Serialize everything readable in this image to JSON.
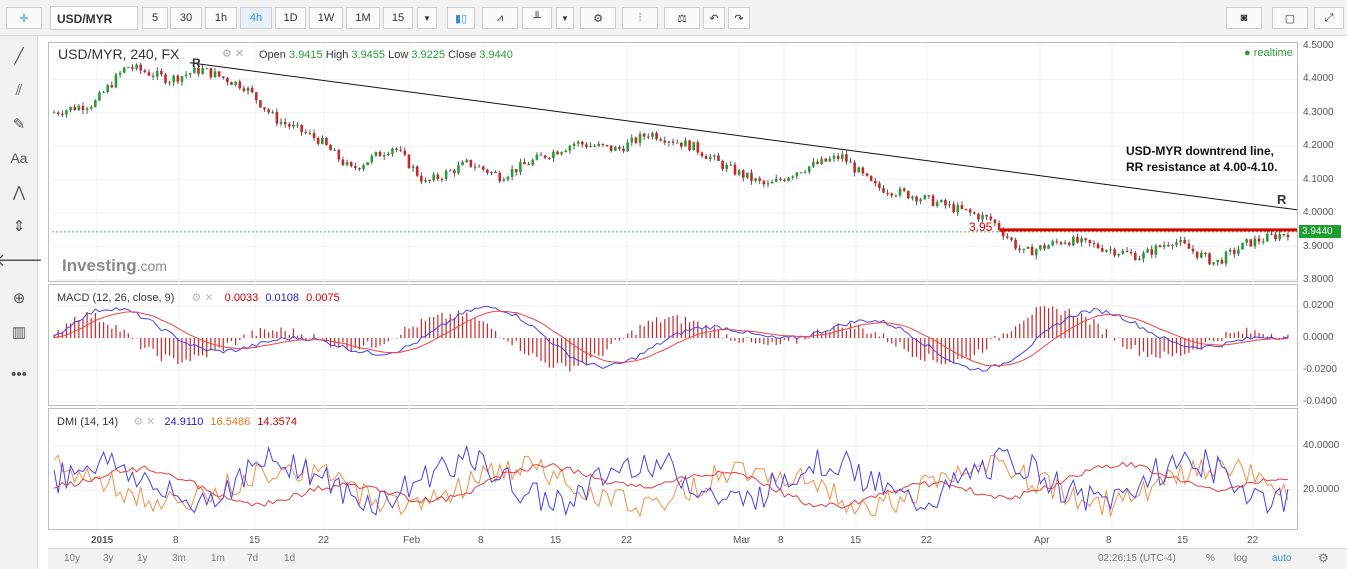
{
  "toolbar": {
    "symbol": "USD/MYR",
    "intervals": [
      "5",
      "30",
      "1h",
      "4h",
      "1D",
      "1W",
      "1M",
      "15"
    ],
    "active_interval": "4h"
  },
  "legend": {
    "title": "USD/MYR, 240, FX",
    "open_label": "Open",
    "open": "3.9415",
    "high_label": "High",
    "high": "3.9455",
    "low_label": "Low",
    "low": "3.9225",
    "close_label": "Close",
    "close": "3.9440",
    "realtime": "realtime"
  },
  "annotations": {
    "r_left": "R",
    "r_right": "R",
    "level_label": "3.95",
    "note_line1": "USD-MYR downtrend line,",
    "note_line2": "RR resistance at 4.00-4.10.",
    "watermark_brand": "Investing",
    "watermark_suffix": ".com",
    "price_tag": "3.9440"
  },
  "macd": {
    "label": "MACD (12, 26, close, 9)",
    "v1": "0.0033",
    "v2": "0.0108",
    "v3": "0.0075",
    "ticks": [
      "0.0200",
      "0.0000",
      "-0.0200",
      "-0.0400"
    ]
  },
  "dmi": {
    "label": "DMI (14, 14)",
    "v1": "24.9110",
    "v2": "16.5486",
    "v3": "14.3574",
    "ticks": [
      "40.0000",
      "20.0000"
    ]
  },
  "price_axis": [
    "4.5000",
    "4.4000",
    "4.3000",
    "4.2000",
    "4.1000",
    "4.0000",
    "3.9000",
    "3.8000"
  ],
  "x_axis": [
    "2015",
    "8",
    "15",
    "22",
    "Feb",
    "8",
    "15",
    "22",
    "Mar",
    "8",
    "15",
    "22",
    "Apr",
    "8",
    "15",
    "22"
  ],
  "bottom": {
    "ranges": [
      "10y",
      "3y",
      "1y",
      "3m",
      "1m",
      "7d",
      "1d"
    ],
    "time": "02:26:15 (UTC-4)",
    "pct": "%",
    "log": "log",
    "auto": "auto"
  },
  "colors": {
    "up": "#2a9a3a",
    "down": "#c62828",
    "resistance": "#e00000",
    "macd_line": "#4444ee",
    "signal_line": "#ee4444",
    "dmi_plus": "#4444ee",
    "dmi_minus": "#f0904a",
    "adx": "#e04040"
  },
  "chart_data": {
    "type": "candlestick",
    "title": "USD/MYR, 240, FX",
    "ylim": [
      3.8,
      4.5
    ],
    "resistance_level": 3.95,
    "last_price": 3.944,
    "close_path": [
      [
        "2015-01-01",
        4.3
      ],
      [
        "2015-01-05",
        4.33
      ],
      [
        "2015-01-08",
        4.44
      ],
      [
        "2015-01-12",
        4.4
      ],
      [
        "2015-01-15",
        4.43
      ],
      [
        "2015-01-19",
        4.38
      ],
      [
        "2015-01-22",
        4.28
      ],
      [
        "2015-01-26",
        4.22
      ],
      [
        "2015-01-29",
        4.13
      ],
      [
        "2015-02-02",
        4.2
      ],
      [
        "2015-02-05",
        4.09
      ],
      [
        "2015-02-09",
        4.15
      ],
      [
        "2015-02-12",
        4.11
      ],
      [
        "2015-02-16",
        4.17
      ],
      [
        "2015-02-19",
        4.21
      ],
      [
        "2015-02-23",
        4.19
      ],
      [
        "2015-02-26",
        4.24
      ],
      [
        "2015-03-02",
        4.2
      ],
      [
        "2015-03-05",
        4.14
      ],
      [
        "2015-03-09",
        4.08
      ],
      [
        "2015-03-12",
        4.13
      ],
      [
        "2015-03-16",
        4.17
      ],
      [
        "2015-03-19",
        4.08
      ],
      [
        "2015-03-23",
        4.05
      ],
      [
        "2015-03-26",
        4.02
      ],
      [
        "2015-03-30",
        3.98
      ],
      [
        "2015-04-02",
        3.88
      ],
      [
        "2015-04-06",
        3.92
      ],
      [
        "2015-04-09",
        3.9
      ],
      [
        "2015-04-13",
        3.87
      ],
      [
        "2015-04-16",
        3.92
      ],
      [
        "2015-04-20",
        3.85
      ],
      [
        "2015-04-23",
        3.91
      ],
      [
        "2015-04-27",
        3.944
      ]
    ]
  }
}
